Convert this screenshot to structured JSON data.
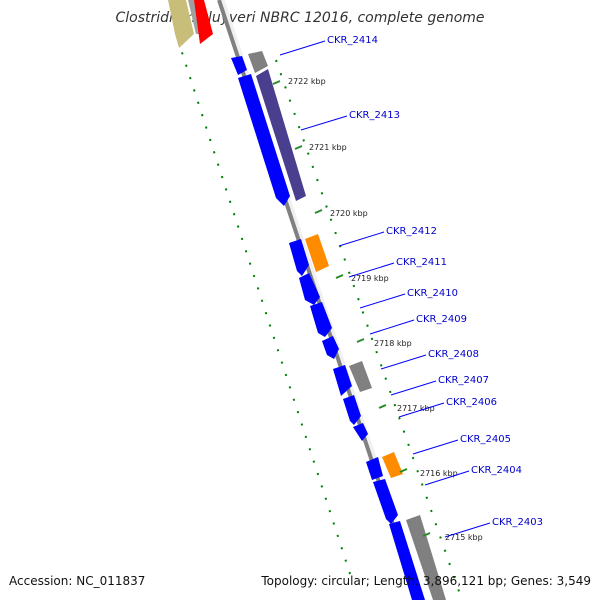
{
  "title": "Clostridium kluyveri NBRC 12016, complete genome",
  "footer": {
    "accession": "Accession: NC_011837",
    "summary": "Topology: circular; Length: 3,896,121 bp; Genes: 3,549"
  },
  "colors": {
    "backbone": "#808080",
    "gene_forward": "#0000ff",
    "gene_hypothetical": "#808080",
    "gene_slate": "#4a3f8f",
    "gene_orange": "#ff8c00",
    "gene_khaki": "#c8be7a",
    "gene_red": "#ff0000",
    "label": "#0000cc",
    "gc_ticks": "#008000"
  },
  "scale_marks": [
    {
      "kbp": 2722,
      "label": "2722 kbp"
    },
    {
      "kbp": 2721,
      "label": "2721 kbp"
    },
    {
      "kbp": 2720,
      "label": "2720 kbp"
    },
    {
      "kbp": 2719,
      "label": "2719 kbp"
    },
    {
      "kbp": 2718,
      "label": "2718 kbp"
    },
    {
      "kbp": 2717,
      "label": "2717 kbp"
    },
    {
      "kbp": 2716,
      "label": "2716 kbp"
    },
    {
      "kbp": 2715,
      "label": "2715 kbp"
    }
  ],
  "genes": [
    {
      "id": "CKR_2414",
      "label": "CKR_2414"
    },
    {
      "id": "CKR_2413",
      "label": "CKR_2413"
    },
    {
      "id": "CKR_2412",
      "label": "CKR_2412"
    },
    {
      "id": "CKR_2411",
      "label": "CKR_2411"
    },
    {
      "id": "CKR_2410",
      "label": "CKR_2410"
    },
    {
      "id": "CKR_2409",
      "label": "CKR_2409"
    },
    {
      "id": "CKR_2408",
      "label": "CKR_2408"
    },
    {
      "id": "CKR_2407",
      "label": "CKR_2407"
    },
    {
      "id": "CKR_2406",
      "label": "CKR_2406"
    },
    {
      "id": "CKR_2405",
      "label": "CKR_2405"
    },
    {
      "id": "CKR_2404",
      "label": "CKR_2404"
    },
    {
      "id": "CKR_2403",
      "label": "CKR_2403"
    }
  ]
}
